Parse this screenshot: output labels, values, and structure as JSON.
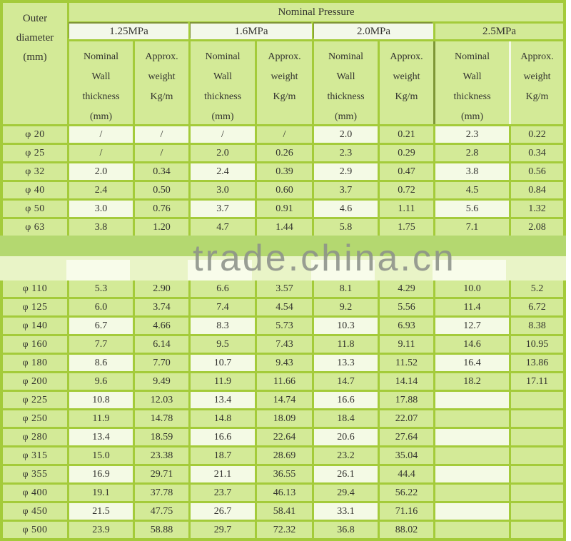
{
  "colors": {
    "border_green": "#a4cb3a",
    "cell_green": "#d3ea97",
    "cell_light": "#f4fae5",
    "pressure_header_white": "#f3f8ea",
    "watermark_band_green": "#b4d870",
    "watermark_band_light": "#e9f4c7",
    "watermark_text_gray": "#8d928a",
    "text": "#33332f"
  },
  "header": {
    "outer_diameter_lines": [
      "Outer",
      "diameter",
      "(mm)"
    ],
    "nominal_pressure_label": "Nominal Pressure",
    "pressure_classes": [
      {
        "label": "1.25MPa",
        "highlight": true
      },
      {
        "label": "1.6MPa",
        "highlight": true
      },
      {
        "label": "2.0MPa",
        "highlight": true
      },
      {
        "label": "2.5MPa",
        "highlight": false
      }
    ],
    "wall_subheader_lines": [
      "Nominal",
      "Wall",
      "thickness",
      "(mm)"
    ],
    "weight_subheader_lines": [
      "Approx.",
      "weight",
      "Kg/m",
      ""
    ]
  },
  "watermark": {
    "text": "trade.china.cn"
  },
  "rows_block1": [
    {
      "dia": "φ 20",
      "values": [
        "/",
        "/",
        "/",
        "/",
        "2.0",
        "0.21",
        "2.3",
        "0.22"
      ],
      "light_cols": [
        0,
        1,
        2,
        4,
        6
      ]
    },
    {
      "dia": "φ 25",
      "values": [
        "/",
        "/",
        "2.0",
        "0.26",
        "2.3",
        "0.29",
        "2.8",
        "0.34"
      ],
      "light_cols": []
    },
    {
      "dia": "φ 32",
      "values": [
        "2.0",
        "0.34",
        "2.4",
        "0.39",
        "2.9",
        "0.47",
        "3.8",
        "0.56"
      ],
      "light_cols": [
        0,
        2,
        4,
        6
      ]
    },
    {
      "dia": "φ 40",
      "values": [
        "2.4",
        "0.50",
        "3.0",
        "0.60",
        "3.7",
        "0.72",
        "4.5",
        "0.84"
      ],
      "light_cols": []
    },
    {
      "dia": "φ 50",
      "values": [
        "3.0",
        "0.76",
        "3.7",
        "0.91",
        "4.6",
        "1.11",
        "5.6",
        "1.32"
      ],
      "light_cols": [
        0,
        2,
        4,
        6
      ]
    },
    {
      "dia": "φ 63",
      "values": [
        "3.8",
        "1.20",
        "4.7",
        "1.44",
        "5.8",
        "1.75",
        "7.1",
        "2.08"
      ],
      "light_cols": []
    }
  ],
  "rows_block2": [
    {
      "dia": "φ 110",
      "values": [
        "5.3",
        "2.90",
        "6.6",
        "3.57",
        "8.1",
        "4.29",
        "10.0",
        "5.2"
      ],
      "light_cols": []
    },
    {
      "dia": "φ 125",
      "values": [
        "6.0",
        "3.74",
        "7.4",
        "4.54",
        "9.2",
        "5.56",
        "11.4",
        "6.72"
      ],
      "light_cols": []
    },
    {
      "dia": "φ 140",
      "values": [
        "6.7",
        "4.66",
        "8.3",
        "5.73",
        "10.3",
        "6.93",
        "12.7",
        "8.38"
      ],
      "light_cols": [
        0,
        2,
        4,
        6
      ]
    },
    {
      "dia": "φ 160",
      "values": [
        "7.7",
        "6.14",
        "9.5",
        "7.43",
        "11.8",
        "9.11",
        "14.6",
        "10.95"
      ],
      "light_cols": []
    },
    {
      "dia": "φ 180",
      "values": [
        "8.6",
        "7.70",
        "10.7",
        "9.43",
        "13.3",
        "11.52",
        "16.4",
        "13.86"
      ],
      "light_cols": [
        0,
        2,
        4,
        6
      ]
    },
    {
      "dia": "φ 200",
      "values": [
        "9.6",
        "9.49",
        "11.9",
        "11.66",
        "14.7",
        "14.14",
        "18.2",
        "17.11"
      ],
      "light_cols": []
    },
    {
      "dia": "φ 225",
      "values": [
        "10.8",
        "12.03",
        "13.4",
        "14.74",
        "16.6",
        "17.88",
        "",
        ""
      ],
      "light_cols": [
        0,
        2,
        4,
        6
      ]
    },
    {
      "dia": "φ 250",
      "values": [
        "11.9",
        "14.78",
        "14.8",
        "18.09",
        "18.4",
        "22.07",
        "",
        ""
      ],
      "light_cols": []
    },
    {
      "dia": "φ 280",
      "values": [
        "13.4",
        "18.59",
        "16.6",
        "22.64",
        "20.6",
        "27.64",
        "",
        ""
      ],
      "light_cols": [
        0,
        2,
        4,
        6
      ]
    },
    {
      "dia": "φ 315",
      "values": [
        "15.0",
        "23.38",
        "18.7",
        "28.69",
        "23.2",
        "35.04",
        "",
        ""
      ],
      "light_cols": []
    },
    {
      "dia": "φ 355",
      "values": [
        "16.9",
        "29.71",
        "21.1",
        "36.55",
        "26.1",
        "44.4",
        "",
        ""
      ],
      "light_cols": [
        0,
        2,
        4,
        6
      ]
    },
    {
      "dia": "φ 400",
      "values": [
        "19.1",
        "37.78",
        "23.7",
        "46.13",
        "29.4",
        "56.22",
        "",
        ""
      ],
      "light_cols": []
    },
    {
      "dia": "φ 450",
      "values": [
        "21.5",
        "47.75",
        "26.7",
        "58.41",
        "33.1",
        "71.16",
        "",
        ""
      ],
      "light_cols": [
        0,
        2,
        4,
        6
      ]
    },
    {
      "dia": "φ 500",
      "values": [
        "23.9",
        "58.88",
        "29.7",
        "72.32",
        "36.8",
        "88.02",
        "",
        ""
      ],
      "light_cols": []
    }
  ]
}
